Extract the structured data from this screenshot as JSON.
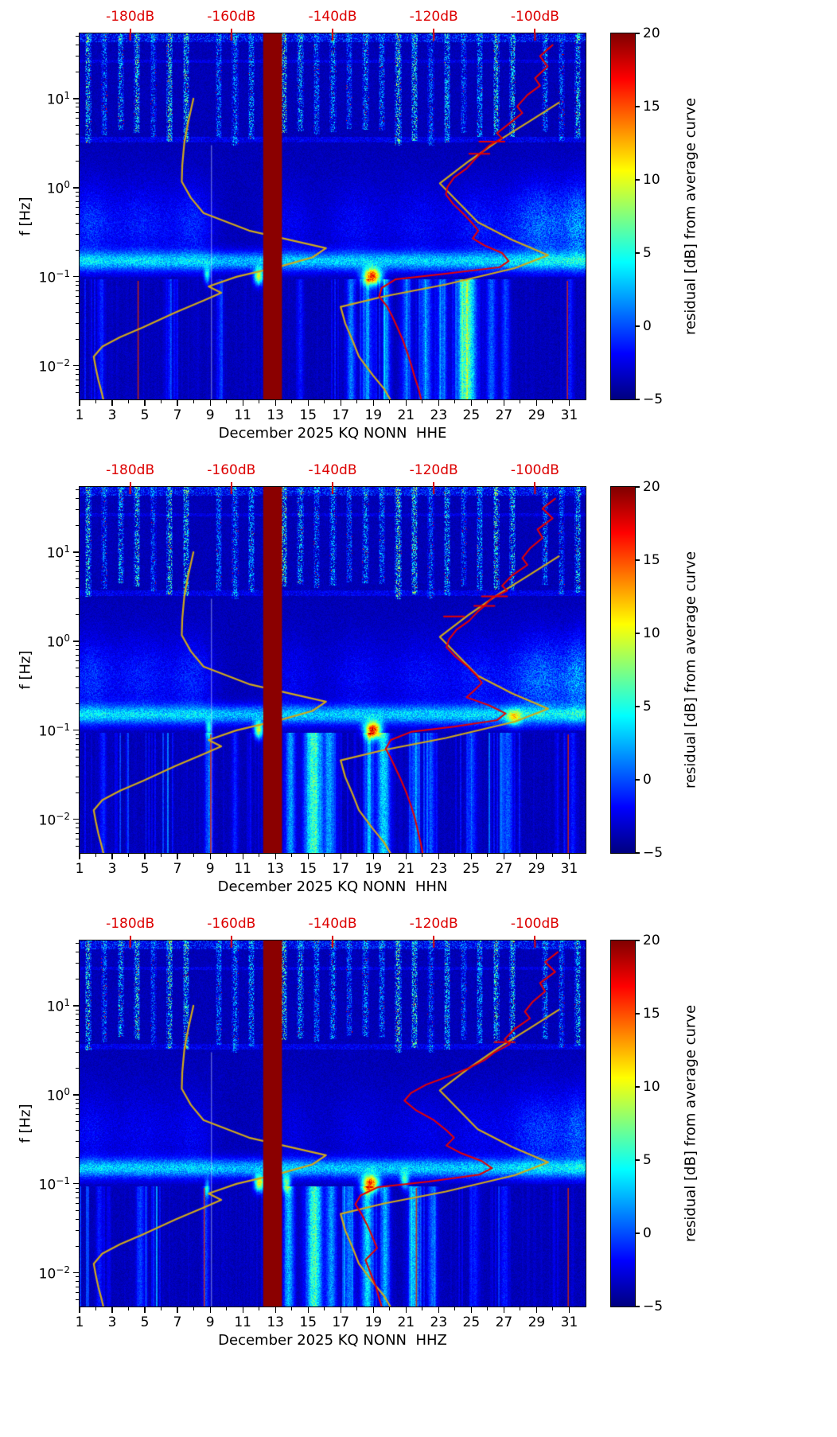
{
  "figure": {
    "top_axis": {
      "color": "#dd0000",
      "labels": [
        "-180dB",
        "-160dB",
        "-140dB",
        "-120dB",
        "-100dB"
      ],
      "values": [
        -180,
        -160,
        -140,
        -120,
        -100
      ],
      "range_db": [
        -190,
        -90
      ]
    },
    "x_axis": {
      "tick_labels": [
        "1",
        "3",
        "5",
        "7",
        "9",
        "11",
        "13",
        "15",
        "17",
        "19",
        "21",
        "23",
        "25",
        "27",
        "29",
        "31"
      ],
      "tick_values": [
        1,
        3,
        5,
        7,
        9,
        11,
        13,
        15,
        17,
        19,
        21,
        23,
        25,
        27,
        29,
        31
      ],
      "minor_values": [
        2,
        4,
        6,
        8,
        10,
        12,
        14,
        16,
        18,
        20,
        22,
        24,
        26,
        28,
        30
      ],
      "range_days": [
        1,
        32
      ]
    },
    "y_axis": {
      "label": "f [Hz]",
      "major": [
        {
          "base": "10",
          "exp": "1",
          "value": 10
        },
        {
          "base": "10",
          "exp": "0",
          "value": 1
        },
        {
          "base": "10",
          "exp": "−1",
          "value": 0.1
        },
        {
          "base": "10",
          "exp": "−2",
          "value": 0.01
        }
      ],
      "range_hz": [
        0.0042,
        54
      ]
    },
    "colorbar": {
      "label": "residual [dB] from average curve",
      "tick_labels": [
        "20",
        "15",
        "10",
        "5",
        "0",
        "−5"
      ],
      "tick_values": [
        20,
        15,
        10,
        5,
        0,
        -5
      ],
      "clim": [
        -5,
        20
      ],
      "colormap": "jet"
    },
    "gap_band": {
      "color": "#8b0000",
      "day_start": 12.25,
      "day_end": 13.4
    }
  },
  "overlays": {
    "noise_model_color": "#cfa81c",
    "observed_color": "#e60000",
    "nlnm_db_hz": [
      [
        -167.5,
        10
      ],
      [
        -168.5,
        5.6
      ],
      [
        -169.3,
        3.2
      ],
      [
        -169.7,
        1.8
      ],
      [
        -169.8,
        1.17
      ],
      [
        -168.0,
        0.77
      ],
      [
        -165.5,
        0.52
      ],
      [
        -156.5,
        0.33
      ],
      [
        -141.3,
        0.21
      ],
      [
        -144.0,
        0.165
      ],
      [
        -150.5,
        0.13
      ],
      [
        -159.0,
        0.1
      ],
      [
        -164.5,
        0.078
      ],
      [
        -162.0,
        0.066
      ],
      [
        -165.5,
        0.054
      ],
      [
        -171.0,
        0.04
      ],
      [
        -177.5,
        0.027
      ],
      [
        -182.0,
        0.021
      ],
      [
        -185.5,
        0.0165
      ],
      [
        -187.2,
        0.0127
      ],
      [
        -186.8,
        0.0095
      ],
      [
        -186.3,
        0.007
      ],
      [
        -185.7,
        0.0052
      ],
      [
        -185.3,
        0.0042
      ]
    ],
    "nhnm_db_hz": [
      [
        -95.3,
        9.0
      ],
      [
        -101.0,
        5.6
      ],
      [
        -107.3,
        3.35
      ],
      [
        -113.0,
        2.0
      ],
      [
        -118.8,
        1.12
      ],
      [
        -115.5,
        0.72
      ],
      [
        -111.3,
        0.41
      ],
      [
        -104.5,
        0.26
      ],
      [
        -97.4,
        0.175
      ],
      [
        -104.0,
        0.125
      ],
      [
        -117.6,
        0.082
      ],
      [
        -130.0,
        0.06
      ],
      [
        -138.4,
        0.046
      ],
      [
        -137.5,
        0.03
      ],
      [
        -136.0,
        0.019
      ],
      [
        -134.8,
        0.0127
      ],
      [
        -132.0,
        0.0078
      ],
      [
        -129.8,
        0.0055
      ],
      [
        -128.6,
        0.0042
      ]
    ]
  },
  "chart_data": [
    {
      "type": "heatmap",
      "channel": "HHE",
      "xlabel": "December 2025 KQ NONN  HHE",
      "x_range_days": [
        1,
        32
      ],
      "y_range_hz": [
        0.0042,
        54
      ],
      "top_db_range": [
        -190,
        -90
      ],
      "colorbar_label": "residual [dB] from average curve",
      "clim": [
        -5,
        20
      ],
      "gap_days": [
        12.25,
        13.4
      ],
      "seed": 11,
      "mid_scale": 1.0,
      "observed_psd_db_hz": [
        [
          -96.5,
          40
        ],
        [
          -99,
          30
        ],
        [
          -97.5,
          23
        ],
        [
          -100,
          17
        ],
        [
          -99,
          14
        ],
        [
          -101.5,
          11
        ],
        [
          -103.5,
          8.2
        ],
        [
          -102.5,
          6.9
        ],
        [
          -105,
          5.3
        ],
        [
          -107.5,
          4.1
        ],
        [
          -106.5,
          3.6
        ],
        [
          -109,
          3.0
        ],
        [
          -110.5,
          2.5
        ],
        [
          -112,
          2.05
        ],
        [
          -113.5,
          1.65
        ],
        [
          -116,
          1.3
        ],
        [
          -117.3,
          1.02
        ],
        [
          -117.6,
          0.84
        ],
        [
          -116.2,
          0.66
        ],
        [
          -114.3,
          0.52
        ],
        [
          -112.4,
          0.4
        ],
        [
          -111.2,
          0.33
        ],
        [
          -112.3,
          0.27
        ],
        [
          -110.0,
          0.225
        ],
        [
          -106.5,
          0.185
        ],
        [
          -105.2,
          0.15
        ],
        [
          -107.0,
          0.128
        ],
        [
          -118,
          0.108
        ],
        [
          -127.5,
          0.094
        ],
        [
          -130.3,
          0.075
        ],
        [
          -130.8,
          0.06
        ],
        [
          -129.3,
          0.047
        ],
        [
          -128.2,
          0.036
        ],
        [
          -127.2,
          0.027
        ],
        [
          -126.2,
          0.02
        ],
        [
          -125.3,
          0.0145
        ],
        [
          -124.5,
          0.0105
        ],
        [
          -123.8,
          0.0076
        ],
        [
          -123.0,
          0.0055
        ],
        [
          -122.5,
          0.0042
        ]
      ],
      "error_bars_db_hz_hw": [
        [
          -108.5,
          3.3,
          2.5
        ],
        [
          -111,
          2.4,
          2
        ]
      ],
      "hotspots_day_hz_w_amp": [
        [
          11.95,
          0.102,
          0.28,
          15
        ],
        [
          18.9,
          0.102,
          0.55,
          22
        ],
        [
          8.8,
          0.105,
          0.18,
          9
        ]
      ],
      "low_streaks_day_w_amp": [
        [
          24.7,
          0.55,
          13
        ],
        [
          17.6,
          0.25,
          6
        ],
        [
          18.6,
          0.3,
          5
        ],
        [
          19.8,
          0.25,
          5
        ],
        [
          21.0,
          0.3,
          5
        ],
        [
          22.2,
          0.35,
          6
        ],
        [
          23.2,
          0.3,
          5
        ],
        [
          26.2,
          0.3,
          5
        ],
        [
          27.1,
          0.25,
          4
        ],
        [
          2.3,
          0.2,
          3
        ],
        [
          6.5,
          0.15,
          3
        ],
        [
          9.6,
          0.2,
          3
        ],
        [
          14.5,
          0.2,
          3
        ],
        [
          31.0,
          0.2,
          3
        ]
      ],
      "mid_blobs_day_w_amp": [
        [
          1.6,
          1.2,
          4
        ],
        [
          4.8,
          2.2,
          3.5
        ],
        [
          8.0,
          1.2,
          3.5
        ],
        [
          13.8,
          1.5,
          2.2
        ],
        [
          17.8,
          1.8,
          2.5
        ],
        [
          21.8,
          2.0,
          2.5
        ],
        [
          25.3,
          1.5,
          3
        ],
        [
          29.3,
          2.2,
          6.5
        ],
        [
          31.6,
          0.8,
          6
        ]
      ],
      "artifact_red_lines_day": [
        4.55,
        30.85
      ],
      "artifact_white_lines_day": [
        9.05
      ]
    },
    {
      "type": "heatmap",
      "channel": "HHN",
      "xlabel": "December 2025 KQ NONN  HHN",
      "x_range_days": [
        1,
        32
      ],
      "y_range_hz": [
        0.0042,
        54
      ],
      "top_db_range": [
        -190,
        -90
      ],
      "colorbar_label": "residual [dB] from average curve",
      "clim": [
        -5,
        20
      ],
      "gap_days": [
        12.25,
        13.4
      ],
      "seed": 23,
      "mid_scale": 1.0,
      "observed_psd_db_hz": [
        [
          -96,
          40
        ],
        [
          -98.5,
          31
        ],
        [
          -96.5,
          24
        ],
        [
          -99.5,
          18
        ],
        [
          -98.5,
          14.5
        ],
        [
          -101,
          11
        ],
        [
          -102.5,
          8.6
        ],
        [
          -101.5,
          7.2
        ],
        [
          -104.5,
          5.5
        ],
        [
          -106.5,
          4.2
        ],
        [
          -105.5,
          3.7
        ],
        [
          -108.5,
          3.05
        ],
        [
          -110,
          2.5
        ],
        [
          -111.5,
          2.1
        ],
        [
          -113,
          1.7
        ],
        [
          -115.5,
          1.35
        ],
        [
          -117,
          1.05
        ],
        [
          -117.5,
          0.86
        ],
        [
          -115.8,
          0.68
        ],
        [
          -113.5,
          0.53
        ],
        [
          -111.5,
          0.41
        ],
        [
          -110.5,
          0.34
        ],
        [
          -112,
          0.28
        ],
        [
          -113.5,
          0.235
        ],
        [
          -109,
          0.19
        ],
        [
          -105.8,
          0.155
        ],
        [
          -107.5,
          0.13
        ],
        [
          -116,
          0.11
        ],
        [
          -124.5,
          0.096
        ],
        [
          -128.5,
          0.078
        ],
        [
          -129.5,
          0.062
        ],
        [
          -128.5,
          0.049
        ],
        [
          -127.5,
          0.037
        ],
        [
          -126.5,
          0.028
        ],
        [
          -125.5,
          0.0205
        ],
        [
          -124.6,
          0.0148
        ],
        [
          -123.8,
          0.0107
        ],
        [
          -123.2,
          0.0077
        ],
        [
          -122.6,
          0.0055
        ],
        [
          -122.2,
          0.0042
        ]
      ],
      "error_bars_db_hz_hw": [
        [
          -108,
          3.2,
          2.5
        ],
        [
          -110,
          2.5,
          2
        ],
        [
          -116,
          1.9,
          2
        ]
      ],
      "hotspots_day_hz_w_amp": [
        [
          11.95,
          0.102,
          0.26,
          15
        ],
        [
          18.95,
          0.102,
          0.5,
          23
        ],
        [
          8.9,
          0.105,
          0.18,
          9
        ],
        [
          27.6,
          0.14,
          0.45,
          10
        ]
      ],
      "low_streaks_day_w_amp": [
        [
          15.3,
          0.5,
          12
        ],
        [
          13.9,
          0.3,
          7
        ],
        [
          16.3,
          0.3,
          7
        ],
        [
          19.6,
          0.4,
          9
        ],
        [
          18.7,
          0.25,
          6
        ],
        [
          21.5,
          0.3,
          5
        ],
        [
          22.5,
          0.3,
          4
        ],
        [
          25.0,
          0.3,
          4
        ],
        [
          27.2,
          0.3,
          5
        ],
        [
          8.9,
          0.25,
          5
        ],
        [
          2.4,
          0.2,
          3
        ],
        [
          31.2,
          0.2,
          3
        ],
        [
          10.5,
          0.2,
          3
        ]
      ],
      "mid_blobs_day_w_amp": [
        [
          1.6,
          1.2,
          4
        ],
        [
          4.8,
          2.2,
          3.5
        ],
        [
          8.0,
          1.2,
          3.5
        ],
        [
          14.0,
          1.5,
          2.2
        ],
        [
          18.0,
          1.8,
          2.5
        ],
        [
          22.0,
          2.0,
          2.8
        ],
        [
          25.3,
          1.5,
          3
        ],
        [
          29.3,
          2.2,
          6.5
        ],
        [
          31.6,
          0.8,
          6
        ]
      ],
      "artifact_red_lines_day": [
        9.0,
        30.9
      ],
      "artifact_white_lines_day": [
        9.05
      ]
    },
    {
      "type": "heatmap",
      "channel": "HHZ",
      "xlabel": "December 2025 KQ NONN  HHZ",
      "x_range_days": [
        1,
        32
      ],
      "y_range_hz": [
        0.0042,
        54
      ],
      "top_db_range": [
        -190,
        -90
      ],
      "colorbar_label": "residual [dB] from average curve",
      "clim": [
        -5,
        20
      ],
      "gap_days": [
        12.25,
        13.4
      ],
      "seed": 37,
      "mid_scale": 0.8,
      "observed_psd_db_hz": [
        [
          -95.5,
          40
        ],
        [
          -98,
          31
        ],
        [
          -96,
          24
        ],
        [
          -99,
          18
        ],
        [
          -98,
          14.5
        ],
        [
          -100.5,
          11
        ],
        [
          -102,
          8.6
        ],
        [
          -101,
          7.2
        ],
        [
          -104,
          5.5
        ],
        [
          -106,
          4.2
        ],
        [
          -105,
          3.7
        ],
        [
          -108,
          3.0
        ],
        [
          -110,
          2.45
        ],
        [
          -113,
          2.0
        ],
        [
          -117,
          1.62
        ],
        [
          -121.5,
          1.3
        ],
        [
          -124.5,
          1.05
        ],
        [
          -125.8,
          0.86
        ],
        [
          -123.5,
          0.67
        ],
        [
          -120,
          0.52
        ],
        [
          -117.5,
          0.4
        ],
        [
          -116,
          0.33
        ],
        [
          -117.5,
          0.27
        ],
        [
          -114.5,
          0.22
        ],
        [
          -110.5,
          0.18
        ],
        [
          -108.5,
          0.15
        ],
        [
          -111,
          0.127
        ],
        [
          -121,
          0.106
        ],
        [
          -131,
          0.092
        ],
        [
          -134.5,
          0.074
        ],
        [
          -135.5,
          0.059
        ],
        [
          -134.3,
          0.046
        ],
        [
          -133.2,
          0.035
        ],
        [
          -132.2,
          0.026
        ],
        [
          -131.2,
          0.019
        ],
        [
          -133.5,
          0.014
        ],
        [
          -132.5,
          0.01
        ],
        [
          -131.5,
          0.0072
        ],
        [
          -130.8,
          0.0052
        ],
        [
          -130.3,
          0.0042
        ]
      ],
      "error_bars_db_hz_hw": [
        [
          -106,
          3.9,
          2
        ]
      ],
      "hotspots_day_hz_w_amp": [
        [
          12.0,
          0.102,
          0.3,
          16
        ],
        [
          13.65,
          0.103,
          0.25,
          12
        ],
        [
          18.8,
          0.102,
          0.5,
          22
        ],
        [
          8.8,
          0.09,
          0.15,
          8
        ],
        [
          20.9,
          0.11,
          0.25,
          10
        ]
      ],
      "low_streaks_day_w_amp": [
        [
          15.35,
          0.45,
          12
        ],
        [
          13.8,
          0.3,
          8
        ],
        [
          16.4,
          0.3,
          7
        ],
        [
          17.5,
          0.3,
          6
        ],
        [
          18.6,
          0.35,
          9
        ],
        [
          19.7,
          0.3,
          7
        ],
        [
          21.5,
          0.35,
          8
        ],
        [
          22.6,
          0.3,
          5
        ],
        [
          4.7,
          0.25,
          4
        ],
        [
          8.7,
          0.2,
          4
        ],
        [
          25.2,
          0.25,
          3
        ],
        [
          27.0,
          0.25,
          3
        ],
        [
          2.2,
          0.2,
          3
        ]
      ],
      "mid_blobs_day_w_amp": [
        [
          1.6,
          1.2,
          3
        ],
        [
          4.8,
          2.2,
          2.5
        ],
        [
          8.0,
          1.2,
          2.5
        ],
        [
          14.0,
          1.5,
          1.8
        ],
        [
          18.0,
          1.8,
          2
        ],
        [
          22.0,
          2.0,
          2.2
        ],
        [
          25.3,
          1.5,
          2.2
        ],
        [
          29.3,
          2.2,
          6
        ],
        [
          31.6,
          0.8,
          5.5
        ]
      ],
      "artifact_red_lines_day": [
        8.6,
        21.6,
        30.9
      ],
      "artifact_white_lines_day": [
        9.05
      ]
    }
  ]
}
